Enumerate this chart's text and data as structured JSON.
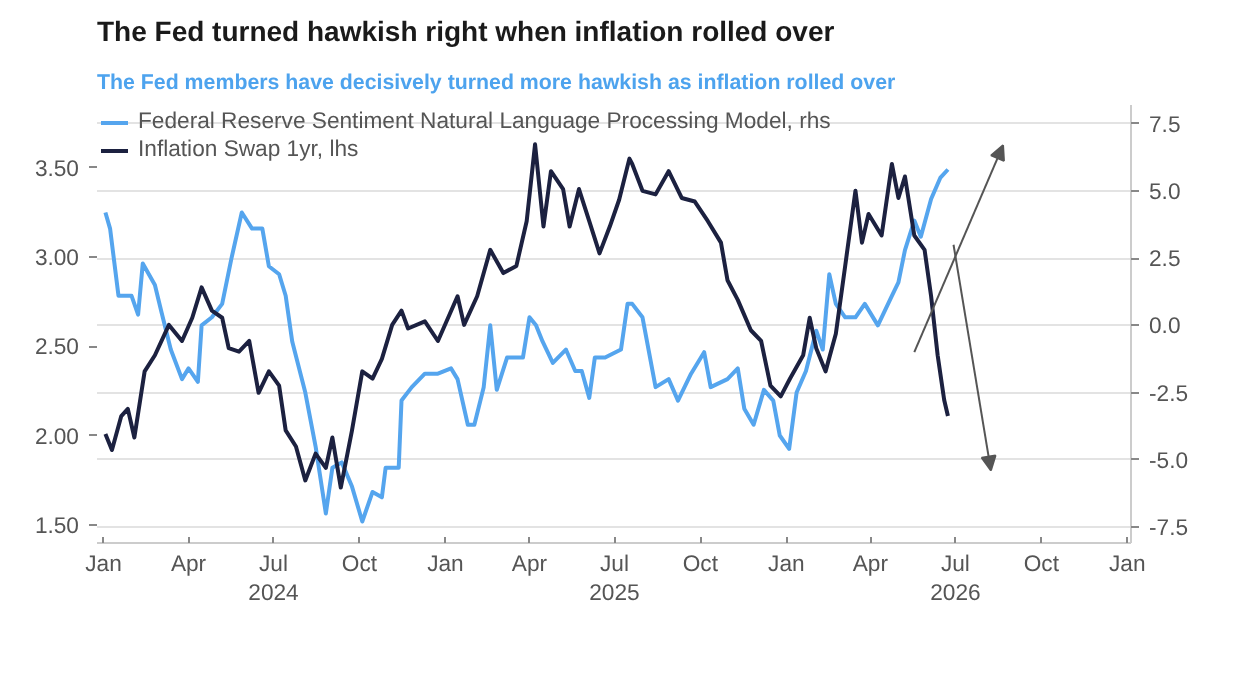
{
  "chart_data": {
    "type": "line",
    "title": "The Fed turned hawkish right when inflation rolled over",
    "subtitle": "The Fed members have decisively turned more hawkish as inflation rolled over",
    "xlim": [
      "2023-12-25",
      "2027-01-05"
    ],
    "xticks": [
      {
        "value": "2024-01-01",
        "label": "Jan"
      },
      {
        "value": "2024-04-01",
        "label": "Apr"
      },
      {
        "value": "2024-07-01",
        "label": "Jul\n2024"
      },
      {
        "value": "2024-10-01",
        "label": "Oct"
      },
      {
        "value": "2025-01-01",
        "label": "Jan"
      },
      {
        "value": "2025-04-01",
        "label": "Apr"
      },
      {
        "value": "2025-07-01",
        "label": "Jul\n2025"
      },
      {
        "value": "2025-10-01",
        "label": "Oct"
      },
      {
        "value": "2026-01-01",
        "label": "Jan"
      },
      {
        "value": "2026-04-01",
        "label": "Apr"
      },
      {
        "value": "2026-07-01",
        "label": "Jul\n2026"
      },
      {
        "value": "2026-10-01",
        "label": "Oct"
      },
      {
        "value": "2027-01-01",
        "label": "Jan"
      }
    ],
    "ylim": [
      1.4,
      3.85
    ],
    "yticks": [
      {
        "value": 1.5,
        "label": "1.50"
      },
      {
        "value": 2.0,
        "label": "2.00"
      },
      {
        "value": 2.5,
        "label": "2.50"
      },
      {
        "value": 3.0,
        "label": "3.00"
      },
      {
        "value": 3.5,
        "label": "3.50"
      }
    ],
    "y2lim": [
      -8.1,
      8.2
    ],
    "y2ticks": [
      {
        "value": -7.5,
        "label": "-7.5"
      },
      {
        "value": -5,
        "label": "-5.0"
      },
      {
        "value": -2.5,
        "label": "-2.5"
      },
      {
        "value": 0,
        "label": "0.0"
      },
      {
        "value": 2.5,
        "label": "2.5"
      },
      {
        "value": 5,
        "label": "5.0"
      },
      {
        "value": 7.5,
        "label": "7.5"
      }
    ],
    "grid": "y2",
    "legend": "top left",
    "marker": "none",
    "line_style": "solid",
    "series": [
      {
        "name": "Federal Reserve Sentiment Natural Language Processing Model, rhs",
        "color": "#55a5ee",
        "axis": "y2",
        "x": [
          "2024-01-03",
          "2024-01-08",
          "2024-01-17",
          "2024-01-31",
          "2024-02-07",
          "2024-02-12",
          "2024-02-25",
          "2024-03-03",
          "2024-03-13",
          "2024-03-25",
          "2024-04-01",
          "2024-04-11",
          "2024-04-15",
          "2024-04-26",
          "2024-05-07",
          "2024-05-17",
          "2024-05-28",
          "2024-06-08",
          "2024-06-19",
          "2024-06-26",
          "2024-07-07",
          "2024-07-14",
          "2024-07-21",
          "2024-08-04",
          "2024-08-15",
          "2024-08-26",
          "2024-09-02",
          "2024-09-12",
          "2024-09-23",
          "2024-10-04",
          "2024-10-15",
          "2024-10-25",
          "2024-10-29",
          "2024-11-12",
          "2024-11-15",
          "2024-11-26",
          "2024-12-10",
          "2024-12-24",
          "2025-01-07",
          "2025-01-14",
          "2025-01-25",
          "2025-02-01",
          "2025-02-11",
          "2025-02-18",
          "2025-02-25",
          "2025-03-08",
          "2025-03-25",
          "2025-04-01",
          "2025-04-08",
          "2025-04-15",
          "2025-04-26",
          "2025-05-10",
          "2025-05-20",
          "2025-05-27",
          "2025-06-04",
          "2025-06-10",
          "2025-06-21",
          "2025-07-08",
          "2025-07-15",
          "2025-07-20",
          "2025-07-31",
          "2025-08-14",
          "2025-08-28",
          "2025-09-07",
          "2025-09-21",
          "2025-10-05",
          "2025-10-12",
          "2025-10-30",
          "2025-11-10",
          "2025-11-17",
          "2025-11-27",
          "2025-12-08",
          "2025-12-18",
          "2025-12-25",
          "2026-01-04",
          "2026-01-12",
          "2026-01-22",
          "2026-02-02",
          "2026-02-09",
          "2026-02-16",
          "2026-02-23",
          "2026-03-05",
          "2026-03-16",
          "2026-03-26",
          "2026-04-09",
          "2026-04-24",
          "2026-05-01",
          "2026-05-08",
          "2026-05-18",
          "2026-05-25",
          "2026-06-05",
          "2026-06-15",
          "2026-06-23"
        ],
        "values": [
          4.2,
          3.6,
          1.1,
          1.1,
          0.4,
          2.3,
          1.5,
          0.5,
          -0.9,
          -2.0,
          -1.6,
          -2.1,
          0.0,
          0.3,
          0.8,
          2.5,
          4.2,
          3.6,
          3.6,
          2.2,
          1.9,
          1.1,
          -0.6,
          -2.5,
          -4.5,
          -7.0,
          -5.3,
          -5.1,
          -6.0,
          -7.3,
          -6.2,
          -6.4,
          -5.3,
          -5.3,
          -2.8,
          -2.3,
          -1.8,
          -1.8,
          -1.6,
          -2.0,
          -3.7,
          -3.7,
          -2.3,
          0.0,
          -2.4,
          -1.2,
          -1.2,
          0.3,
          0.0,
          -0.6,
          -1.4,
          -0.9,
          -1.7,
          -1.7,
          -2.7,
          -1.2,
          -1.2,
          -0.9,
          0.8,
          0.8,
          0.3,
          -2.3,
          -2.0,
          -2.8,
          -1.8,
          -1.0,
          -2.3,
          -2.0,
          -1.6,
          -3.1,
          -3.7,
          -2.4,
          -2.8,
          -4.1,
          -4.6,
          -2.5,
          -1.7,
          -0.2,
          -0.9,
          1.9,
          0.8,
          0.3,
          0.3,
          0.8,
          0.0,
          1.1,
          1.6,
          2.8,
          3.9,
          3.3,
          4.7,
          5.5,
          5.8
        ]
      },
      {
        "name": "Inflation Swap 1yr, lhs",
        "color": "#1c2140",
        "x": [
          "2024-01-03",
          "2024-01-10",
          "2024-01-20",
          "2024-01-27",
          "2024-02-03",
          "2024-02-14",
          "2024-02-25",
          "2024-03-11",
          "2024-03-25",
          "2024-04-05",
          "2024-04-15",
          "2024-04-26",
          "2024-05-07",
          "2024-05-14",
          "2024-05-25",
          "2024-06-05",
          "2024-06-15",
          "2024-06-26",
          "2024-07-07",
          "2024-07-14",
          "2024-07-25",
          "2024-08-04",
          "2024-08-15",
          "2024-08-26",
          "2024-09-02",
          "2024-09-11",
          "2024-09-23",
          "2024-10-04",
          "2024-10-15",
          "2024-10-25",
          "2024-11-05",
          "2024-11-15",
          "2024-11-22",
          "2024-12-10",
          "2024-12-24",
          "2025-01-14",
          "2025-01-21",
          "2025-02-04",
          "2025-02-18",
          "2025-03-04",
          "2025-03-18",
          "2025-03-29",
          "2025-04-07",
          "2025-04-16",
          "2025-04-24",
          "2025-05-07",
          "2025-05-14",
          "2025-05-24",
          "2025-06-04",
          "2025-06-15",
          "2025-06-26",
          "2025-07-06",
          "2025-07-17",
          "2025-07-20",
          "2025-07-31",
          "2025-08-14",
          "2025-08-28",
          "2025-09-11",
          "2025-09-25",
          "2025-10-09",
          "2025-10-23",
          "2025-10-30",
          "2025-11-10",
          "2025-11-24",
          "2025-12-05",
          "2025-12-15",
          "2025-12-26",
          "2026-01-05",
          "2026-01-19",
          "2026-01-26",
          "2026-02-02",
          "2026-02-12",
          "2026-02-23",
          "2026-03-05",
          "2026-03-16",
          "2026-03-23",
          "2026-03-30",
          "2026-04-13",
          "2026-04-24",
          "2026-05-01",
          "2026-05-08",
          "2026-05-18",
          "2026-05-29",
          "2026-06-05",
          "2026-06-12",
          "2026-06-19",
          "2026-06-23"
        ],
        "values": [
          2.01,
          1.92,
          2.11,
          2.15,
          1.99,
          2.36,
          2.45,
          2.62,
          2.53,
          2.66,
          2.83,
          2.7,
          2.66,
          2.49,
          2.47,
          2.53,
          2.24,
          2.36,
          2.28,
          2.03,
          1.94,
          1.75,
          1.9,
          1.82,
          1.99,
          1.71,
          2.03,
          2.36,
          2.32,
          2.43,
          2.62,
          2.7,
          2.6,
          2.64,
          2.53,
          2.78,
          2.62,
          2.78,
          3.04,
          2.91,
          2.95,
          3.2,
          3.63,
          3.17,
          3.48,
          3.38,
          3.17,
          3.38,
          3.2,
          3.02,
          3.17,
          3.32,
          3.55,
          3.52,
          3.37,
          3.35,
          3.48,
          3.33,
          3.31,
          3.2,
          3.08,
          2.87,
          2.76,
          2.59,
          2.53,
          2.28,
          2.22,
          2.32,
          2.45,
          2.66,
          2.49,
          2.36,
          2.57,
          2.95,
          3.37,
          3.08,
          3.24,
          3.12,
          3.52,
          3.33,
          3.45,
          3.12,
          3.04,
          2.78,
          2.45,
          2.2,
          2.11
        ]
      }
    ]
  }
}
